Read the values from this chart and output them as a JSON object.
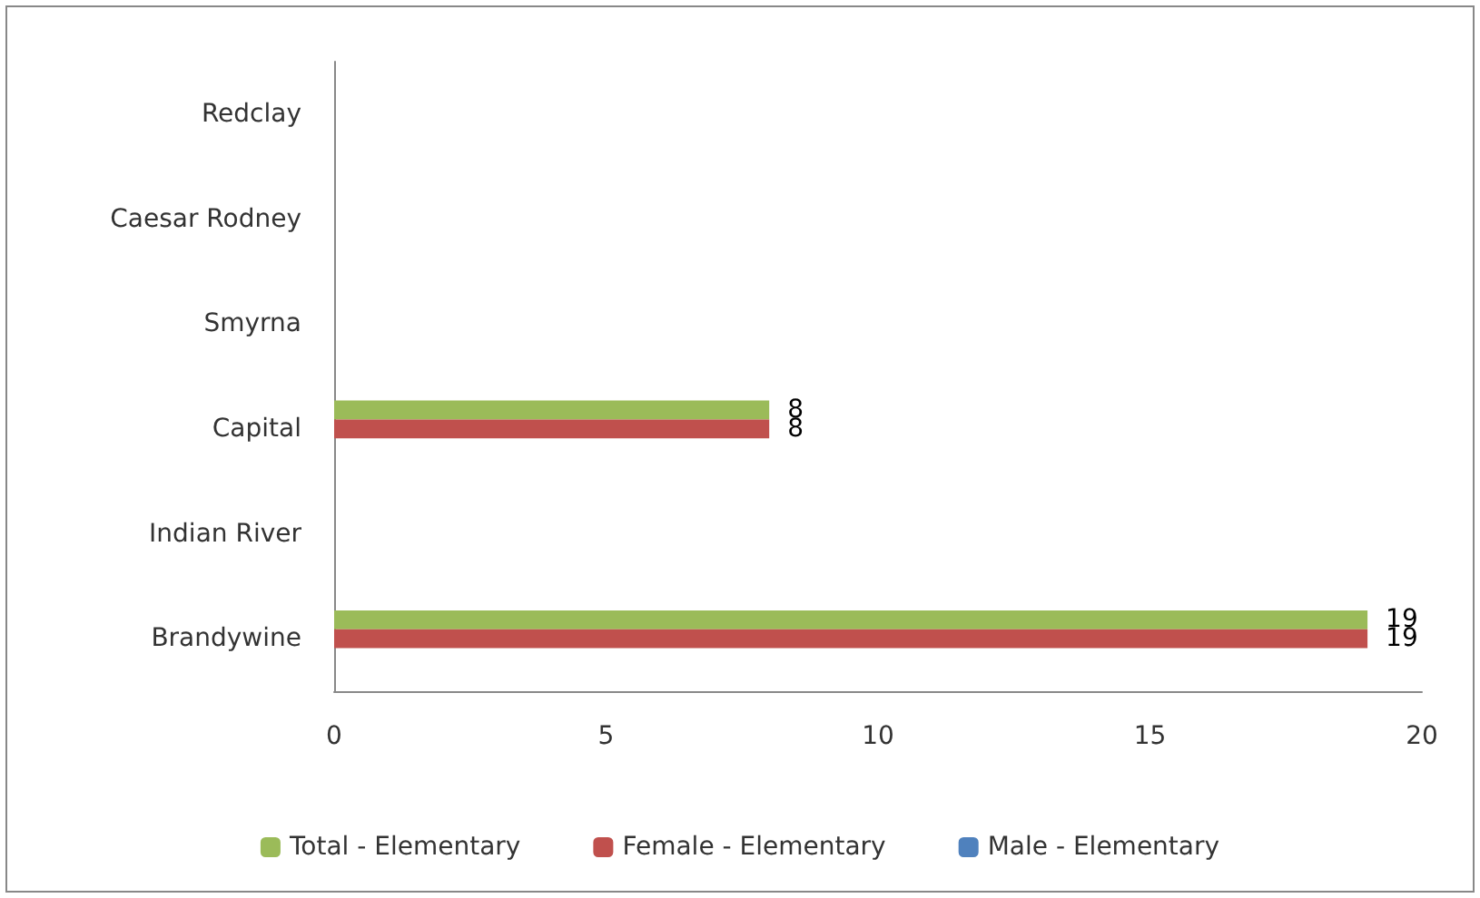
{
  "chart_data": {
    "type": "bar",
    "orientation": "horizontal",
    "categories": [
      "Redclay",
      "Caesar Rodney",
      "Smyrna",
      "Capital",
      "Indian River",
      "Brandywine"
    ],
    "series": [
      {
        "name": "Total - Elementary",
        "color": "#9bbb59",
        "values": [
          null,
          null,
          null,
          8,
          null,
          19
        ]
      },
      {
        "name": "Female - Elementary",
        "color": "#c0504d",
        "values": [
          null,
          null,
          null,
          8,
          null,
          19
        ]
      },
      {
        "name": "Male - Elementary",
        "color": "#4f81bd",
        "values": [
          null,
          null,
          null,
          null,
          null,
          null
        ]
      }
    ],
    "xlim": [
      0,
      20
    ],
    "xticks": [
      0,
      5,
      10,
      15,
      20
    ],
    "grid": false,
    "legend": "bottom",
    "data_labels": true
  }
}
